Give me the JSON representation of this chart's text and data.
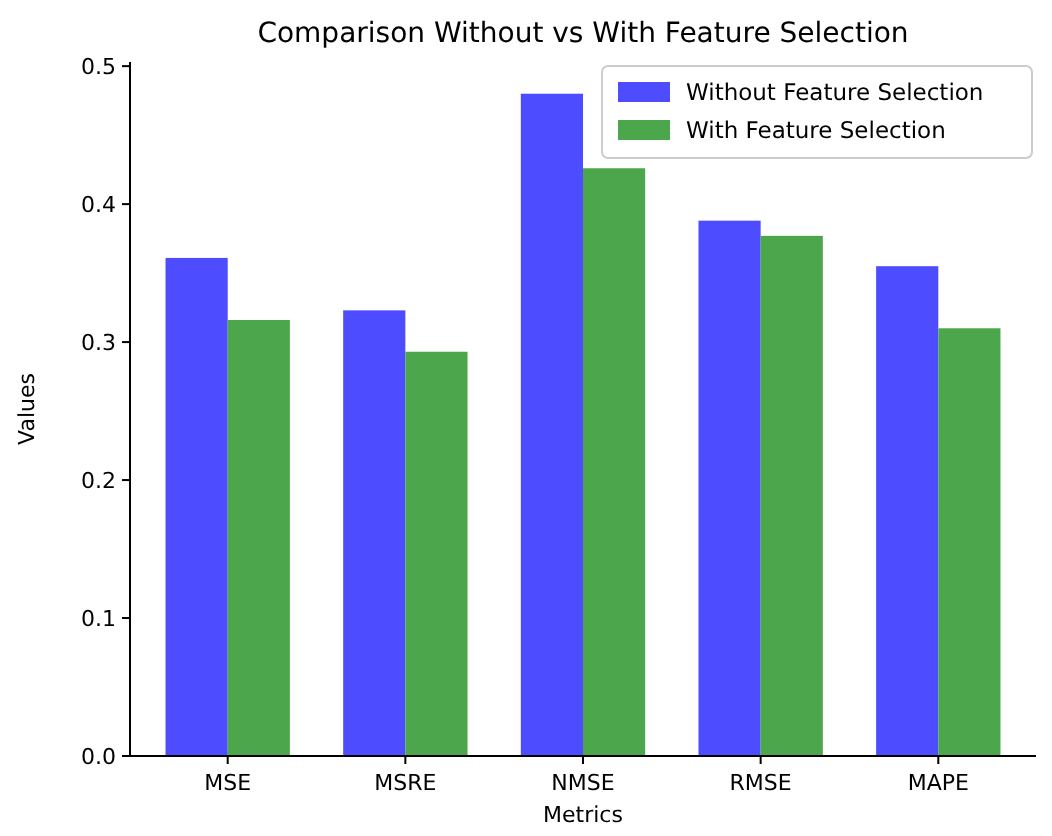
{
  "chart_data": {
    "type": "bar",
    "title": "Comparison Without vs With Feature Selection",
    "xlabel": "Metrics",
    "ylabel": "Values",
    "categories": [
      "MSE",
      "MSRE",
      "NMSE",
      "RMSE",
      "MAPE"
    ],
    "series": [
      {
        "name": "Without Feature Selection",
        "color": "#4d4dff",
        "values": [
          0.361,
          0.323,
          0.48,
          0.388,
          0.355
        ]
      },
      {
        "name": "With Feature Selection",
        "color": "#4ca64c",
        "values": [
          0.316,
          0.293,
          0.426,
          0.377,
          0.31
        ]
      }
    ],
    "ylim": [
      0,
      0.503
    ],
    "yticks": [
      {
        "value": 0,
        "label": "0.0"
      },
      0.1,
      0.2,
      0.3,
      0.4,
      0.5
    ],
    "legend": "top right"
  }
}
